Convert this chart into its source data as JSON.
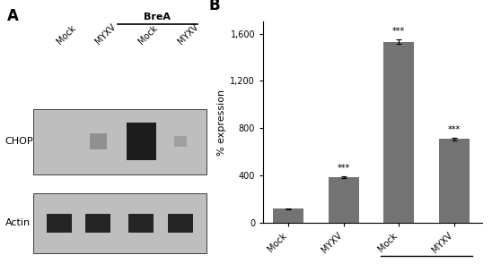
{
  "panel_A_label": "A",
  "panel_B_label": "B",
  "bar_categories": [
    "Mock",
    "MYXV",
    "Mock",
    "MYXV"
  ],
  "bar_values": [
    120,
    390,
    1530,
    710
  ],
  "bar_errors": [
    5,
    8,
    20,
    12
  ],
  "bar_color": "#737373",
  "ylabel": "% expression",
  "ylim": [
    0,
    1700
  ],
  "yticks": [
    0,
    400,
    800,
    1200,
    1600
  ],
  "ytick_labels": [
    "0",
    "400",
    "800",
    "1,200",
    "1,600"
  ],
  "significance_stars": [
    "",
    "***",
    "***",
    "***"
  ],
  "brea_label": "BreA",
  "figure_bg": "#ffffff",
  "chop_label": "CHOP",
  "actin_label": "Actin",
  "col_labels": [
    "Mock",
    "MYXV",
    "Mock",
    "MYXV"
  ],
  "brea_top_label": "BreA"
}
